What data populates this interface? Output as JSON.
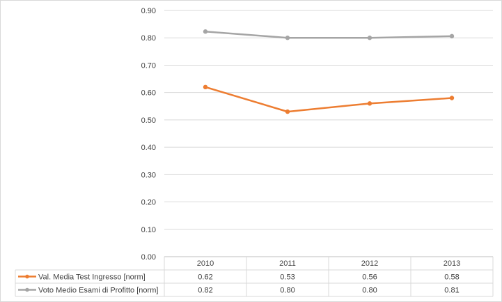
{
  "chart_data": {
    "type": "line",
    "title": "",
    "xlabel": "",
    "ylabel": "",
    "categories": [
      "2010",
      "2011",
      "2012",
      "2013"
    ],
    "ylim": [
      0,
      0.9
    ],
    "yticks": [
      "0.00",
      "0.10",
      "0.20",
      "0.30",
      "0.40",
      "0.50",
      "0.60",
      "0.70",
      "0.80",
      "0.90"
    ],
    "grid": true,
    "legend": "data-table-left",
    "series": [
      {
        "name": "Val. Media Test Ingresso [norm]",
        "values": [
          0.62,
          0.53,
          0.56,
          0.58
        ],
        "labels": [
          "0.62",
          "0.53",
          "0.56",
          "0.58"
        ],
        "color": "#ed7d31"
      },
      {
        "name": "Voto Medio Esami di Profitto [norm]",
        "values": [
          0.823,
          0.8,
          0.8,
          0.806
        ],
        "labels": [
          "0.82",
          "0.80",
          "0.80",
          "0.81"
        ],
        "color": "#a5a5a5"
      }
    ]
  }
}
